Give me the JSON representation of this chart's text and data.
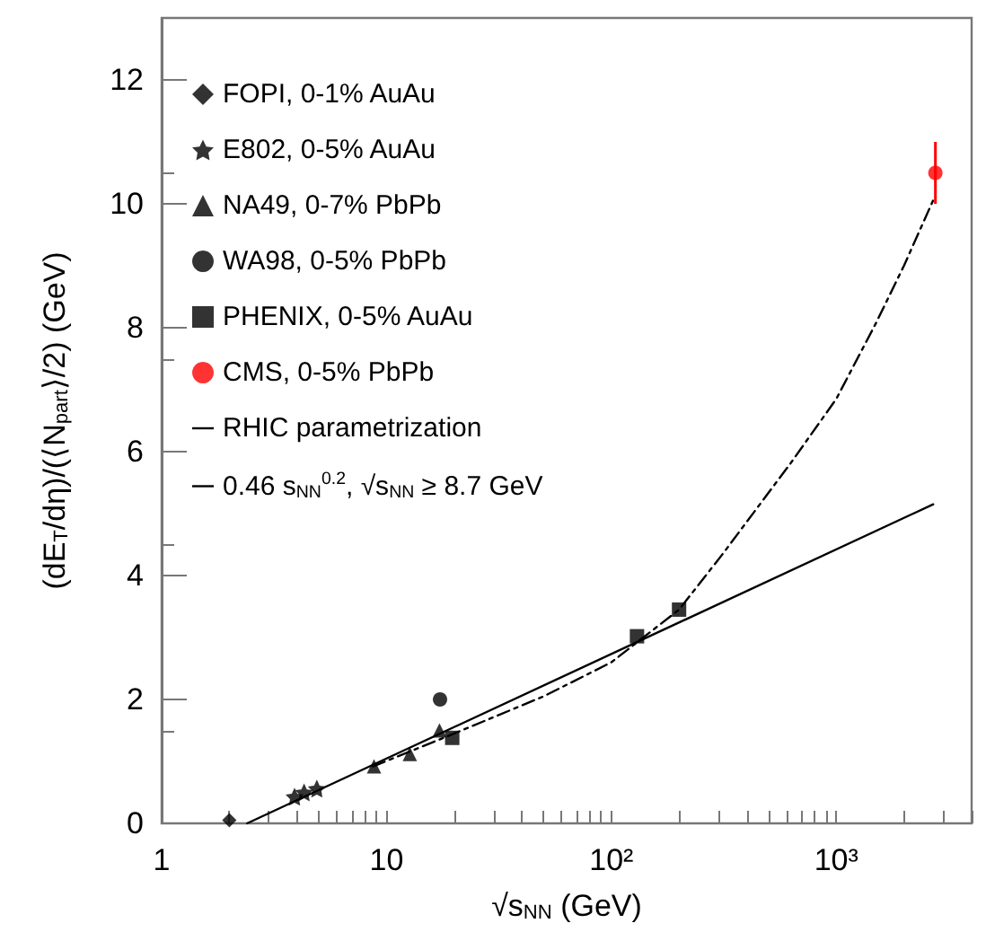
{
  "chart_data": {
    "type": "scatter",
    "xlabel": "√s$_{NN}$ (GeV)",
    "ylabel": "(dE$_{T}$/dη)/(⟨N$_{part}$⟩/2) (GeV)",
    "log": "x",
    "xlim": [
      1,
      4000
    ],
    "ylim": [
      0,
      13
    ],
    "xticks": [
      {
        "value": 1,
        "label": "1"
      },
      {
        "value": 2,
        "label": null
      },
      {
        "value": 3,
        "label": null
      },
      {
        "value": 4,
        "label": null
      },
      {
        "value": 5,
        "label": null
      },
      {
        "value": 6,
        "label": null
      },
      {
        "value": 7,
        "label": null
      },
      {
        "value": 8,
        "label": null
      },
      {
        "value": 9,
        "label": null
      },
      {
        "value": 10,
        "label": "10"
      },
      {
        "value": 20,
        "label": null
      },
      {
        "value": 30,
        "label": null
      },
      {
        "value": 40,
        "label": null
      },
      {
        "value": 50,
        "label": null
      },
      {
        "value": 60,
        "label": null
      },
      {
        "value": 70,
        "label": null
      },
      {
        "value": 80,
        "label": null
      },
      {
        "value": 90,
        "label": null
      },
      {
        "value": 100,
        "label": "10²"
      },
      {
        "value": 200,
        "label": null
      },
      {
        "value": 300,
        "label": null
      },
      {
        "value": 400,
        "label": null
      },
      {
        "value": 500,
        "label": null
      },
      {
        "value": 600,
        "label": null
      },
      {
        "value": 700,
        "label": null
      },
      {
        "value": 800,
        "label": null
      },
      {
        "value": 900,
        "label": null
      },
      {
        "value": 1000,
        "label": "10³"
      },
      {
        "value": 2000,
        "label": null
      },
      {
        "value": 3000,
        "label": null
      },
      {
        "value": 4000,
        "label": null
      }
    ],
    "yticks": [
      0,
      2,
      4,
      6,
      8,
      10,
      12
    ],
    "legend": "top left",
    "series": [
      {
        "name": "FOPI, 0-1% AuAu",
        "color": "#000000",
        "marker": "diamond",
        "x": [
          2.0
        ],
        "values": [
          0.05
        ]
      },
      {
        "name": "E802, 0-5% AuAu",
        "color": "#000000",
        "marker": "star",
        "x": [
          3.9,
          4.3,
          4.9
        ],
        "values": [
          0.43,
          0.5,
          0.56
        ]
      },
      {
        "name": "NA49, 0-7% PbPb",
        "color": "#000000",
        "marker": "triangle",
        "x": [
          8.8,
          12.7,
          17.2
        ],
        "values": [
          0.92,
          1.12,
          1.5
        ]
      },
      {
        "name": "WA98, 0-5% PbPb",
        "color": "#000000",
        "marker": "circle",
        "x": [
          17.3
        ],
        "values": [
          2.0
        ]
      },
      {
        "name": "PHENIX, 0-5% AuAu",
        "color": "#000000",
        "marker": "square",
        "x": [
          19.6,
          130,
          200
        ],
        "values": [
          1.38,
          3.02,
          3.45
        ]
      },
      {
        "name": "CMS, 0-5% PbPb",
        "color": "#ff0000",
        "marker": "circle",
        "x": [
          2760
        ],
        "values": [
          10.5
        ],
        "errors": [
          0.5
        ]
      },
      {
        "name": "RHIC parametrization",
        "type": "line",
        "color": "#000000",
        "marker": "none",
        "line_style": "solid",
        "x": [
          2.4,
          2700
        ],
        "values": [
          0,
          5.15
        ]
      },
      {
        "name": "0.46 s$_{NN}$$^{0.2}$, √s$_{NN}$ ≥ 8.7 GeV",
        "type": "line",
        "color": "#000000",
        "marker": "none",
        "line_style": "dashed",
        "x": [
          8.7,
          20,
          50,
          100,
          200,
          316,
          626,
          1000,
          1500,
          2000,
          2730
        ],
        "values": [
          0.92,
          1.45,
          2.05,
          2.6,
          3.45,
          4.37,
          5.81,
          6.85,
          8.07,
          9.0,
          10.1
        ]
      }
    ]
  }
}
